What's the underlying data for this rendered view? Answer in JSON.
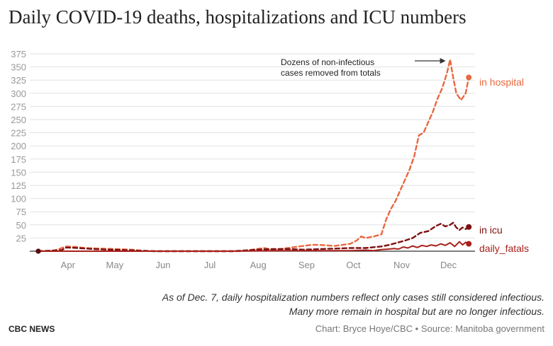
{
  "title": "Daily COVID-19 deaths, hospitalizations and ICU numbers",
  "chart_data": {
    "type": "line",
    "title": "Daily COVID-19 deaths, hospitalizations and ICU numbers",
    "ylim": [
      0,
      375
    ],
    "yticks": [
      25,
      50,
      75,
      100,
      125,
      150,
      175,
      200,
      225,
      250,
      275,
      300,
      325,
      350,
      375
    ],
    "xlim": [
      0,
      280
    ],
    "month_labels": [
      {
        "label": "Apr",
        "x": 19
      },
      {
        "label": "May",
        "x": 49
      },
      {
        "label": "Jun",
        "x": 80
      },
      {
        "label": "Jul",
        "x": 110
      },
      {
        "label": "Aug",
        "x": 141
      },
      {
        "label": "Sep",
        "x": 172
      },
      {
        "label": "Oct",
        "x": 202
      },
      {
        "label": "Nov",
        "x": 233
      },
      {
        "label": "Dec",
        "x": 263
      }
    ],
    "grid": true,
    "annotation": {
      "lines": [
        "Dozens of non-infectious",
        "cases removed from totals"
      ],
      "target": [
        263,
        364
      ]
    },
    "series": [
      {
        "name": "in hospital",
        "color": "#e8683f",
        "dashed": true,
        "end_marker": true,
        "points": [
          [
            0,
            0
          ],
          [
            10,
            1
          ],
          [
            18,
            9
          ],
          [
            24,
            8
          ],
          [
            30,
            6
          ],
          [
            40,
            5
          ],
          [
            50,
            4
          ],
          [
            60,
            3
          ],
          [
            66,
            1
          ],
          [
            75,
            0
          ],
          [
            100,
            0
          ],
          [
            130,
            0
          ],
          [
            135,
            2
          ],
          [
            140,
            4
          ],
          [
            145,
            6
          ],
          [
            150,
            3
          ],
          [
            155,
            4
          ],
          [
            160,
            6
          ],
          [
            165,
            8
          ],
          [
            170,
            10
          ],
          [
            175,
            12
          ],
          [
            180,
            12
          ],
          [
            185,
            11
          ],
          [
            190,
            10
          ],
          [
            195,
            12
          ],
          [
            200,
            14
          ],
          [
            204,
            20
          ],
          [
            207,
            28
          ],
          [
            210,
            25
          ],
          [
            215,
            28
          ],
          [
            220,
            32
          ],
          [
            223,
            60
          ],
          [
            226,
            80
          ],
          [
            229,
            95
          ],
          [
            232,
            115
          ],
          [
            235,
            135
          ],
          [
            238,
            155
          ],
          [
            241,
            180
          ],
          [
            244,
            220
          ],
          [
            247,
            225
          ],
          [
            250,
            245
          ],
          [
            253,
            265
          ],
          [
            256,
            290
          ],
          [
            259,
            310
          ],
          [
            262,
            338
          ],
          [
            264,
            364
          ],
          [
            266,
            330
          ],
          [
            268,
            300
          ],
          [
            271,
            287
          ],
          [
            274,
            300
          ],
          [
            276,
            330
          ]
        ]
      },
      {
        "name": "in icu",
        "color": "#7d0f10",
        "dashed": true,
        "end_marker": true,
        "points": [
          [
            0,
            0
          ],
          [
            15,
            2
          ],
          [
            18,
            7
          ],
          [
            25,
            6
          ],
          [
            35,
            4
          ],
          [
            45,
            3
          ],
          [
            55,
            2
          ],
          [
            65,
            1
          ],
          [
            75,
            0
          ],
          [
            125,
            0
          ],
          [
            140,
            3
          ],
          [
            150,
            4
          ],
          [
            160,
            4
          ],
          [
            170,
            3
          ],
          [
            180,
            4
          ],
          [
            190,
            5
          ],
          [
            200,
            6
          ],
          [
            210,
            6
          ],
          [
            220,
            9
          ],
          [
            225,
            12
          ],
          [
            230,
            16
          ],
          [
            235,
            20
          ],
          [
            240,
            25
          ],
          [
            245,
            35
          ],
          [
            250,
            38
          ],
          [
            255,
            48
          ],
          [
            258,
            52
          ],
          [
            261,
            47
          ],
          [
            264,
            50
          ],
          [
            266,
            54
          ],
          [
            268,
            45
          ],
          [
            270,
            40
          ],
          [
            272,
            45
          ],
          [
            274,
            42
          ],
          [
            276,
            46
          ]
        ]
      },
      {
        "name": "daily_fatals",
        "color": "#a8201a",
        "dashed": false,
        "end_marker": true,
        "points": [
          [
            0,
            0
          ],
          [
            60,
            0
          ],
          [
            120,
            0
          ],
          [
            150,
            1
          ],
          [
            180,
            1
          ],
          [
            200,
            1
          ],
          [
            210,
            2
          ],
          [
            215,
            1
          ],
          [
            220,
            3
          ],
          [
            225,
            4
          ],
          [
            228,
            5
          ],
          [
            231,
            4
          ],
          [
            234,
            8
          ],
          [
            237,
            6
          ],
          [
            240,
            10
          ],
          [
            243,
            7
          ],
          [
            246,
            11
          ],
          [
            249,
            9
          ],
          [
            252,
            12
          ],
          [
            255,
            10
          ],
          [
            258,
            14
          ],
          [
            261,
            11
          ],
          [
            264,
            16
          ],
          [
            267,
            9
          ],
          [
            270,
            18
          ],
          [
            272,
            12
          ],
          [
            274,
            17
          ],
          [
            276,
            14
          ]
        ]
      }
    ]
  },
  "note": {
    "line1": "As of Dec. 7, daily hospitalization numbers reflect only cases still considered infectious.",
    "line2": "Many more remain in hospital but are no longer infectious."
  },
  "brand": "CBC NEWS",
  "credit": "Chart: Bryce Hoye/CBC • Source: Manitoba government"
}
